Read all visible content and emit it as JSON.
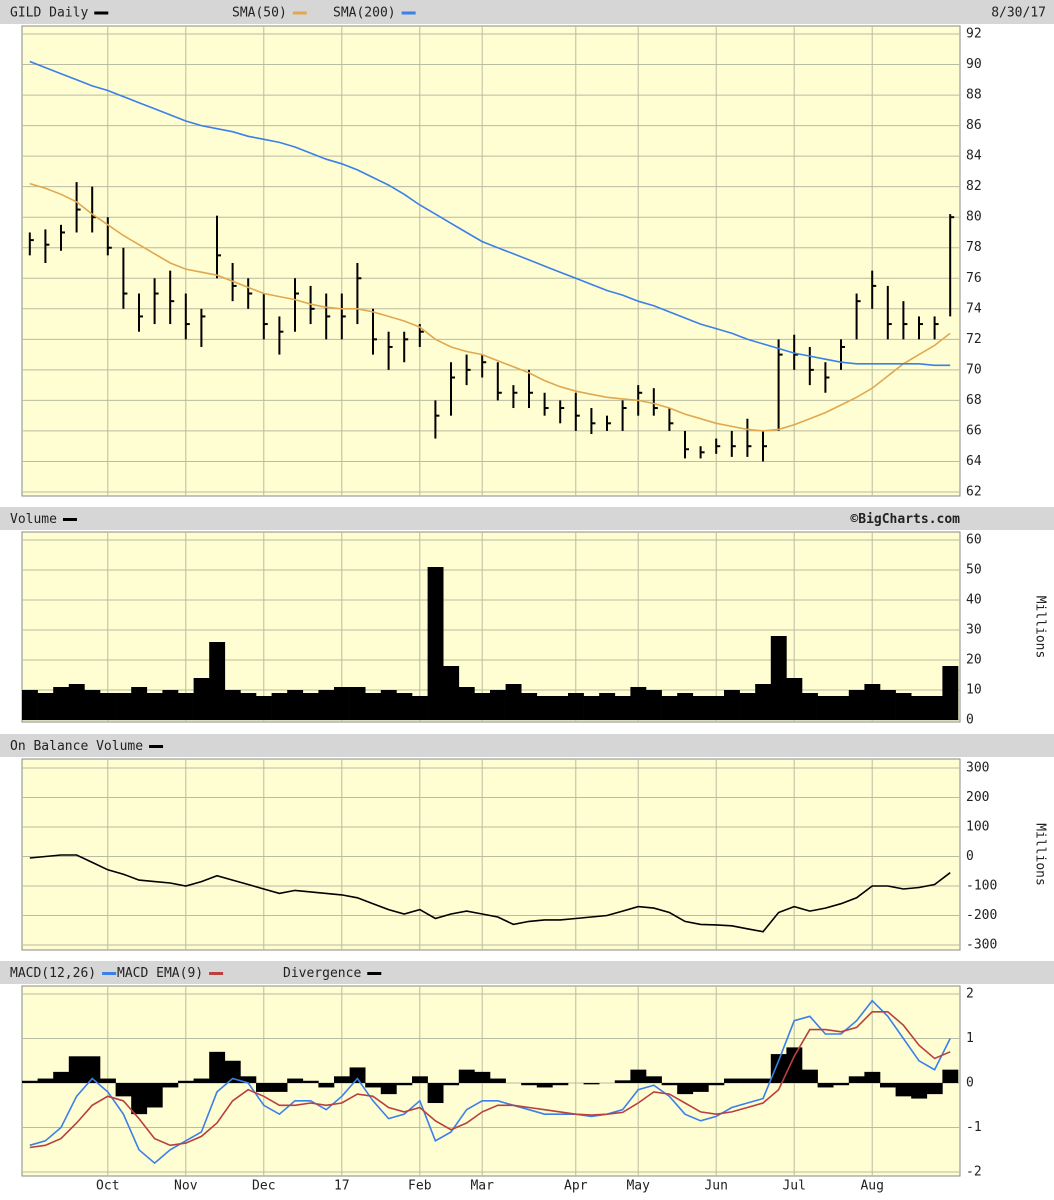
{
  "chart_data": [
    {
      "type": "ohlc",
      "date_label": "8/30/17",
      "ylim": [
        62,
        92
      ],
      "yticks": [
        62,
        64,
        66,
        68,
        70,
        72,
        74,
        76,
        78,
        80,
        82,
        84,
        86,
        88,
        90,
        92
      ],
      "grid": true,
      "series": [
        {
          "name": "GILD Daily",
          "kind": "ohlc",
          "color": "#000000",
          "high": [
            79,
            79.2,
            79.5,
            82.3,
            82,
            80,
            78,
            75,
            76,
            76.5,
            75,
            74,
            80.1,
            77,
            76,
            75,
            73.5,
            76,
            75.5,
            75,
            75,
            77,
            74,
            72.5,
            72.5,
            73,
            68,
            70.5,
            71,
            71,
            70.5,
            69,
            70,
            68.5,
            68,
            68.5,
            67.5,
            67,
            68,
            69,
            68.8,
            67.5,
            66,
            65,
            65.5,
            66,
            66.8,
            66,
            72,
            72.3,
            71.5,
            70.5,
            72,
            75,
            76.5,
            75.5,
            74.5,
            73.5,
            73.5,
            80.2
          ],
          "low": [
            77.5,
            77,
            77.8,
            79,
            79,
            77.5,
            74,
            72.5,
            73,
            73,
            72,
            71.5,
            76,
            74.5,
            74,
            72,
            71,
            72.5,
            73,
            72,
            72,
            73,
            71,
            70,
            70.5,
            71.5,
            65.5,
            67,
            69,
            69.5,
            68,
            67.5,
            67.5,
            67,
            66.5,
            66,
            65.8,
            66,
            66,
            67,
            67,
            66,
            64.2,
            64.2,
            64.5,
            64.3,
            64.3,
            64,
            66,
            70,
            69,
            68.5,
            70,
            72,
            74,
            72,
            72,
            72,
            72,
            73.5
          ],
          "close": [
            78.5,
            78.2,
            79,
            80.5,
            80,
            78,
            75,
            73.5,
            75,
            74.5,
            73,
            73.5,
            77.5,
            75.5,
            75,
            73,
            72.5,
            75,
            74,
            73.5,
            73.5,
            76,
            72,
            71.5,
            72,
            72.5,
            67,
            69.5,
            70,
            70.5,
            68.5,
            68.5,
            68.5,
            67.5,
            67.5,
            67,
            66.5,
            66.5,
            67.5,
            68.5,
            67.5,
            66.5,
            64.8,
            64.6,
            65,
            65,
            65,
            65,
            71,
            71,
            70,
            69.5,
            71.5,
            74.5,
            75.5,
            73,
            73,
            73,
            73,
            80
          ]
        },
        {
          "name": "SMA(50)",
          "kind": "line",
          "color": "#e0a850",
          "values": [
            82.2,
            81.9,
            81.5,
            81,
            80.2,
            79.5,
            78.8,
            78.2,
            77.6,
            77,
            76.6,
            76.4,
            76.2,
            75.8,
            75.4,
            75,
            74.8,
            74.6,
            74.3,
            74.1,
            74,
            74,
            73.8,
            73.5,
            73.2,
            72.8,
            72,
            71.5,
            71.2,
            71,
            70.6,
            70.2,
            69.8,
            69.3,
            68.9,
            68.6,
            68.4,
            68.2,
            68.1,
            68,
            67.8,
            67.5,
            67.1,
            66.8,
            66.5,
            66.3,
            66.1,
            66,
            66.1,
            66.4,
            66.8,
            67.2,
            67.7,
            68.2,
            68.8,
            69.6,
            70.4,
            71,
            71.6,
            72.4
          ]
        },
        {
          "name": "SMA(200)",
          "kind": "line",
          "color": "#3a80e8",
          "values": [
            90.2,
            89.8,
            89.4,
            89,
            88.6,
            88.3,
            87.9,
            87.5,
            87.1,
            86.7,
            86.3,
            86,
            85.8,
            85.6,
            85.3,
            85.1,
            84.9,
            84.6,
            84.2,
            83.8,
            83.5,
            83.1,
            82.6,
            82.1,
            81.5,
            80.8,
            80.2,
            79.6,
            79,
            78.4,
            78,
            77.6,
            77.2,
            76.8,
            76.4,
            76,
            75.6,
            75.2,
            74.9,
            74.5,
            74.2,
            73.8,
            73.4,
            73,
            72.7,
            72.4,
            72,
            71.7,
            71.4,
            71.1,
            70.9,
            70.7,
            70.5,
            70.4,
            70.4,
            70.4,
            70.4,
            70.4,
            70.3,
            70.3
          ]
        }
      ]
    },
    {
      "type": "bar",
      "credit": "©BigCharts.com",
      "y_label": "Millions",
      "ylim": [
        0,
        60
      ],
      "yticks": [
        0,
        10,
        20,
        30,
        40,
        50,
        60
      ],
      "grid": true,
      "series": [
        {
          "name": "Volume",
          "kind": "bar",
          "color": "#000000",
          "values": [
            10,
            9,
            11,
            12,
            10,
            9,
            9,
            11,
            9,
            10,
            9,
            14,
            26,
            10,
            9,
            8,
            9,
            10,
            9,
            10,
            11,
            11,
            9,
            10,
            9,
            8,
            51,
            18,
            11,
            9,
            10,
            12,
            9,
            8,
            8,
            9,
            8,
            9,
            8,
            11,
            10,
            8,
            9,
            8,
            8,
            10,
            9,
            12,
            28,
            14,
            9,
            8,
            8,
            10,
            12,
            10,
            9,
            8,
            8,
            18
          ]
        }
      ]
    },
    {
      "type": "line",
      "y_label": "Millions",
      "ylim": [
        -300,
        300
      ],
      "yticks": [
        -300,
        -200,
        -100,
        0,
        100,
        200,
        300
      ],
      "grid": true,
      "series": [
        {
          "name": "On Balance Volume",
          "kind": "line",
          "color": "#000000",
          "values": [
            -5,
            0,
            5,
            5,
            -20,
            -45,
            -60,
            -80,
            -85,
            -90,
            -100,
            -85,
            -65,
            -80,
            -95,
            -110,
            -125,
            -115,
            -120,
            -125,
            -130,
            -140,
            -160,
            -180,
            -195,
            -180,
            -210,
            -195,
            -185,
            -195,
            -205,
            -230,
            -220,
            -215,
            -215,
            -210,
            -205,
            -200,
            -185,
            -170,
            -175,
            -190,
            -220,
            -230,
            -232,
            -235,
            -245,
            -255,
            -190,
            -170,
            -185,
            -175,
            -160,
            -140,
            -100,
            -100,
            -110,
            -105,
            -95,
            -55
          ]
        }
      ]
    },
    {
      "type": "line",
      "ylim": [
        -2,
        2
      ],
      "yticks": [
        -2,
        -1,
        0,
        1,
        2
      ],
      "grid": true,
      "categories": [
        null,
        null,
        null,
        null,
        null,
        "Oct",
        null,
        null,
        null,
        null,
        "Nov",
        null,
        null,
        null,
        null,
        "Dec",
        null,
        null,
        null,
        null,
        "17",
        null,
        null,
        null,
        null,
        "Feb",
        null,
        null,
        null,
        "Mar",
        null,
        null,
        null,
        null,
        null,
        "Apr",
        null,
        null,
        null,
        "May",
        null,
        null,
        null,
        null,
        "Jun",
        null,
        null,
        null,
        null,
        "Jul",
        null,
        null,
        null,
        null,
        "Aug",
        null,
        null,
        null,
        null,
        null
      ],
      "series": [
        {
          "name": "MACD(12,26)",
          "kind": "line",
          "color": "#3a80e8",
          "values": [
            -1.4,
            -1.3,
            -1,
            -0.3,
            0.1,
            -0.2,
            -0.7,
            -1.5,
            -1.8,
            -1.5,
            -1.3,
            -1.1,
            -0.2,
            0.1,
            0,
            -0.5,
            -0.7,
            -0.4,
            -0.4,
            -0.6,
            -0.3,
            0.1,
            -0.4,
            -0.8,
            -0.7,
            -0.4,
            -1.3,
            -1.1,
            -0.6,
            -0.4,
            -0.4,
            -0.5,
            -0.6,
            -0.7,
            -0.7,
            -0.7,
            -0.75,
            -0.7,
            -0.6,
            -0.15,
            -0.05,
            -0.3,
            -0.7,
            -0.85,
            -0.75,
            -0.55,
            -0.45,
            -0.35,
            0.5,
            1.4,
            1.5,
            1.1,
            1.1,
            1.4,
            1.85,
            1.5,
            1,
            0.5,
            0.3,
            1
          ]
        },
        {
          "name": "MACD EMA(9)",
          "kind": "line",
          "color": "#b84040",
          "values": [
            -1.45,
            -1.4,
            -1.25,
            -0.9,
            -0.5,
            -0.3,
            -0.4,
            -0.8,
            -1.25,
            -1.4,
            -1.35,
            -1.2,
            -0.9,
            -0.4,
            -0.15,
            -0.3,
            -0.5,
            -0.5,
            -0.45,
            -0.5,
            -0.45,
            -0.25,
            -0.3,
            -0.55,
            -0.65,
            -0.55,
            -0.85,
            -1.05,
            -0.9,
            -0.65,
            -0.5,
            -0.5,
            -0.55,
            -0.6,
            -0.65,
            -0.7,
            -0.72,
            -0.7,
            -0.66,
            -0.45,
            -0.2,
            -0.25,
            -0.45,
            -0.65,
            -0.7,
            -0.65,
            -0.55,
            -0.45,
            -0.15,
            0.6,
            1.2,
            1.2,
            1.15,
            1.25,
            1.6,
            1.6,
            1.3,
            0.85,
            0.55,
            0.7
          ]
        },
        {
          "name": "Divergence",
          "kind": "bar",
          "color": "#000000",
          "values": [
            0.05,
            0.1,
            0.25,
            0.6,
            0.6,
            0.1,
            -0.3,
            -0.7,
            -0.55,
            -0.1,
            0.05,
            0.1,
            0.7,
            0.5,
            0.15,
            -0.2,
            -0.2,
            0.1,
            0.05,
            -0.1,
            0.15,
            0.35,
            -0.1,
            -0.25,
            -0.05,
            0.15,
            -0.45,
            -0.05,
            0.3,
            0.25,
            0.1,
            0,
            -0.05,
            -0.1,
            -0.05,
            0,
            -0.03,
            0,
            0.06,
            0.3,
            0.15,
            -0.05,
            -0.25,
            -0.2,
            -0.05,
            0.1,
            0.1,
            0.1,
            0.65,
            0.8,
            0.3,
            -0.1,
            -0.05,
            0.15,
            0.25,
            -0.1,
            -0.3,
            -0.35,
            -0.25,
            0.3
          ]
        }
      ]
    }
  ]
}
